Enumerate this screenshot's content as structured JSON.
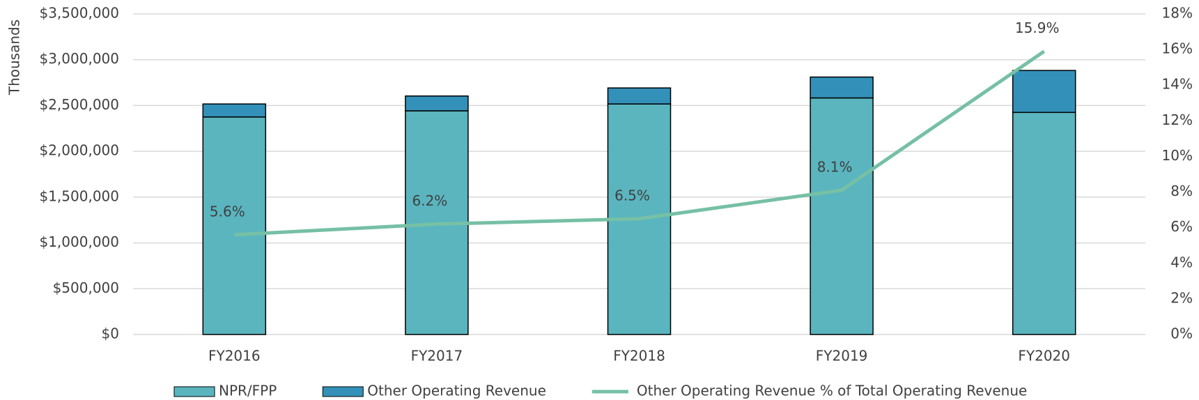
{
  "chart_data": {
    "type": "bar_line",
    "y_axis_label": "Thousands",
    "categories": [
      "FY2016",
      "FY2017",
      "FY2018",
      "FY2019",
      "FY2020"
    ],
    "series": [
      {
        "name": "NPR/FPP",
        "type": "bar",
        "color": "#5ab5bf",
        "values": [
          2375000,
          2442000,
          2517000,
          2583000,
          2425000
        ]
      },
      {
        "name": "Other Operating Revenue",
        "type": "bar",
        "color": "#3391b9",
        "values": [
          142000,
          162000,
          175000,
          228000,
          458000
        ]
      },
      {
        "name": "Other Operating Revenue % of Total Operating Revenue",
        "type": "line",
        "axis": "y2",
        "color": "#76c0a5",
        "values": [
          5.6,
          6.2,
          6.5,
          8.1,
          15.9
        ],
        "value_labels": [
          "5.6%",
          "6.2%",
          "6.5%",
          "8.1%",
          "15.9%"
        ]
      }
    ],
    "stacked": true,
    "ylim": [
      0,
      3500000
    ],
    "yticks": [
      {
        "value": 0,
        "label": "$0"
      },
      {
        "value": 500000,
        "label": "$500,000"
      },
      {
        "value": 1000000,
        "label": "$1,000,000"
      },
      {
        "value": 1500000,
        "label": "$1,500,000"
      },
      {
        "value": 2000000,
        "label": "$2,000,000"
      },
      {
        "value": 2500000,
        "label": "$2,500,000"
      },
      {
        "value": 3000000,
        "label": "$3,000,000"
      },
      {
        "value": 3500000,
        "label": "$3,500,000"
      }
    ],
    "y2lim": [
      0,
      18
    ],
    "y2ticks": [
      {
        "value": 0,
        "label": "0%"
      },
      {
        "value": 2,
        "label": "2%"
      },
      {
        "value": 4,
        "label": "4%"
      },
      {
        "value": 6,
        "label": "6%"
      },
      {
        "value": 8,
        "label": "8%"
      },
      {
        "value": 10,
        "label": "10%"
      },
      {
        "value": 12,
        "label": "12%"
      },
      {
        "value": 14,
        "label": "14%"
      },
      {
        "value": 16,
        "label": "16%"
      },
      {
        "value": 18,
        "label": "18%"
      }
    ],
    "grid": true,
    "legend": "bottom"
  }
}
